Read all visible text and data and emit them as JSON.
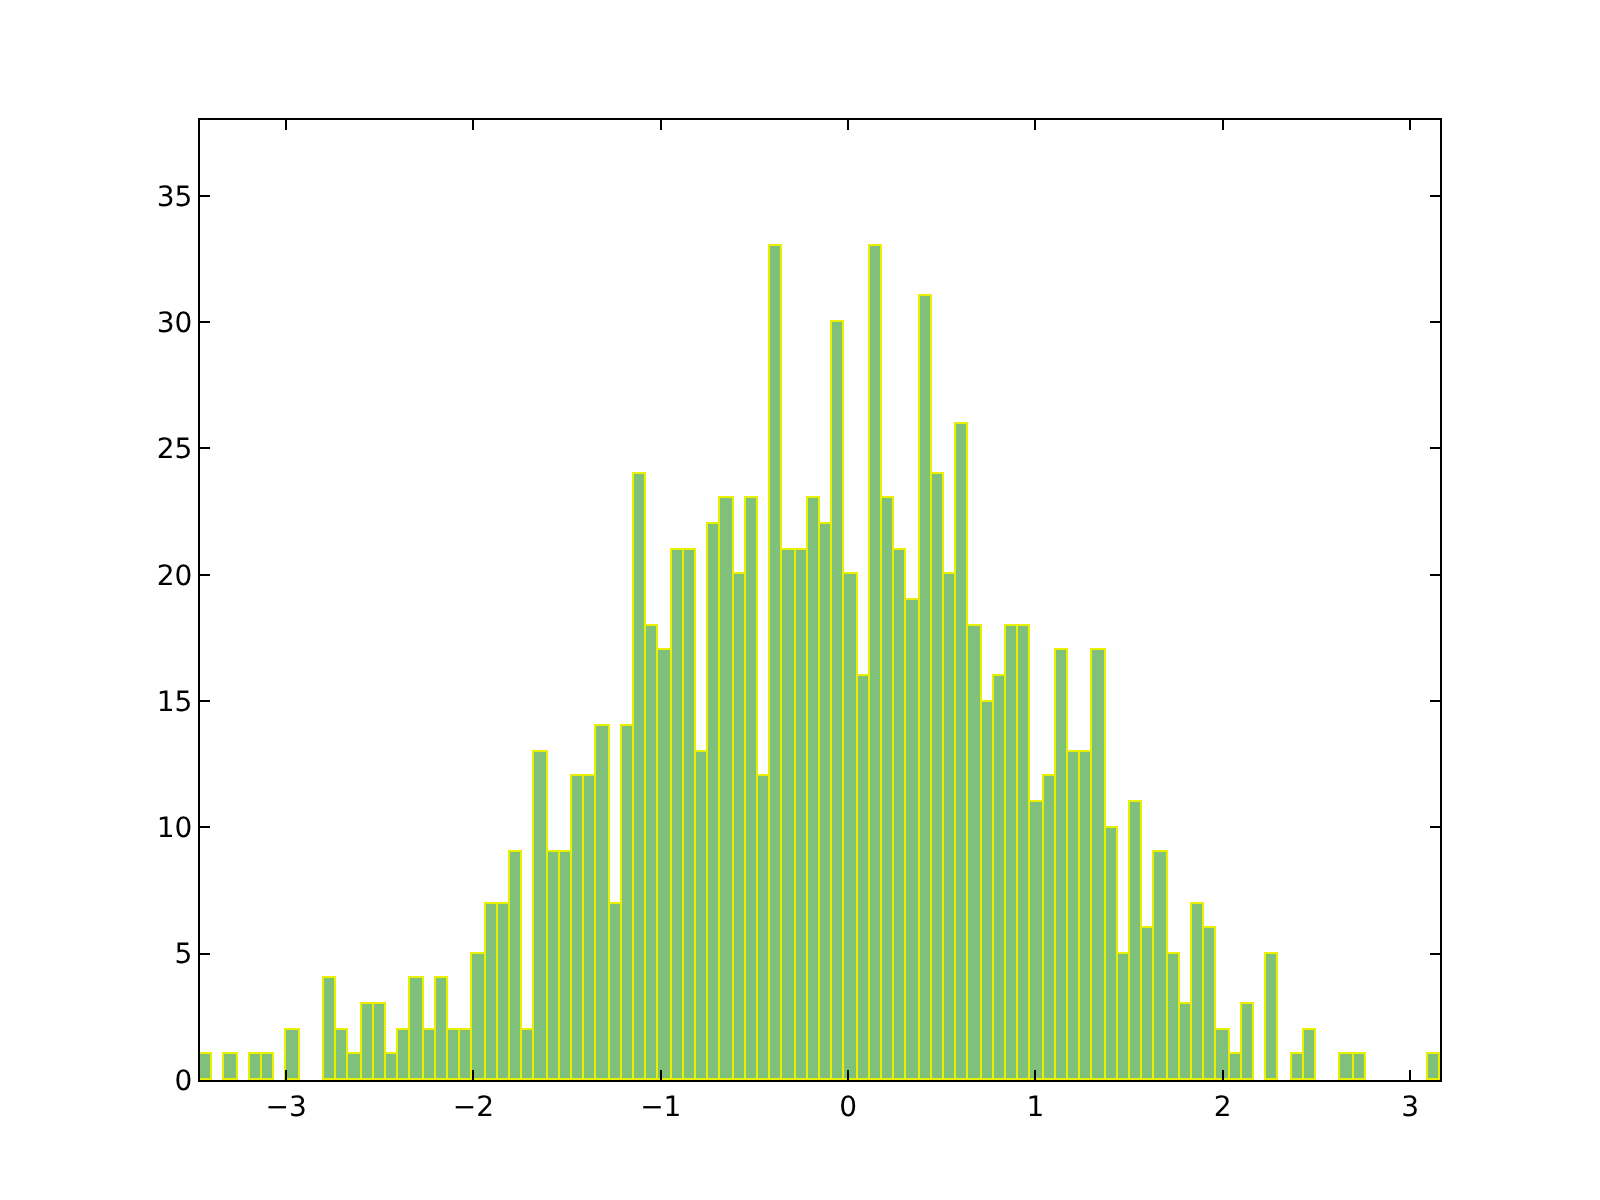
{
  "chart_data": {
    "type": "histogram",
    "color": "#7fc07a",
    "bins": [
      -3.46,
      -3.3938,
      -3.3276,
      -3.2614,
      -3.1952,
      -3.129,
      -3.0628,
      -2.9966,
      -2.9304,
      -2.8642,
      -2.798,
      -2.7318,
      -2.6656,
      -2.5994,
      -2.5332,
      -2.467,
      -2.4008,
      -2.3346,
      -2.2684,
      -2.2022,
      -2.136,
      -2.0698,
      -2.0036,
      -1.9374,
      -1.8712,
      -1.805,
      -1.7388,
      -1.6726,
      -1.6064,
      -1.5402,
      -1.474,
      -1.4078,
      -1.3416,
      -1.2754,
      -1.2092,
      -1.143,
      -1.0768,
      -1.0106,
      -0.9444,
      -0.8782,
      -0.812,
      -0.7458,
      -0.6796,
      -0.6134,
      -0.5472,
      -0.481,
      -0.4148,
      -0.3486,
      -0.2824,
      -0.2162,
      -0.15,
      -0.0838,
      -0.0176,
      0.0486,
      0.1148,
      0.181,
      0.2472,
      0.3134,
      0.3796,
      0.4458,
      0.512,
      0.5782,
      0.6444,
      0.7106,
      0.7768,
      0.843,
      0.9092,
      0.9754,
      1.0416,
      1.1078,
      1.174,
      1.2402,
      1.3064,
      1.3726,
      1.4388,
      1.505,
      1.5712,
      1.6374,
      1.7036,
      1.7698,
      1.836,
      1.9022,
      1.9684,
      2.0346,
      2.1008,
      2.167,
      2.2332,
      2.2994,
      2.3656,
      2.4318,
      2.498,
      2.5642,
      2.6304,
      2.6966,
      2.7628,
      2.829,
      2.8952,
      2.9614,
      3.0276,
      3.0938,
      3.16
    ],
    "values": [
      1,
      0,
      1,
      0,
      1,
      1,
      0,
      2,
      0,
      0,
      4,
      2,
      1,
      3,
      3,
      1,
      2,
      4,
      2,
      4,
      2,
      2,
      5,
      7,
      7,
      9,
      2,
      13,
      9,
      9,
      12,
      12,
      14,
      7,
      14,
      24,
      18,
      17,
      21,
      21,
      13,
      22,
      23,
      20,
      23,
      12,
      33,
      21,
      21,
      23,
      22,
      30,
      20,
      16,
      33,
      23,
      21,
      19,
      31,
      24,
      20,
      26,
      18,
      15,
      16,
      18,
      18,
      11,
      12,
      17,
      13,
      13,
      17,
      10,
      5,
      11,
      6,
      9,
      5,
      3,
      7,
      6,
      2,
      1,
      3,
      0,
      5,
      0,
      1,
      2,
      0,
      0,
      1,
      1,
      0,
      0,
      0,
      0,
      0,
      1
    ],
    "xlim": [
      -3.46,
      3.16
    ],
    "xticks": [
      -3,
      -2,
      -1,
      0,
      1,
      2,
      3
    ],
    "ylim": [
      0,
      38
    ],
    "yticks": [
      0,
      5,
      10,
      15,
      20,
      25,
      30,
      35
    ]
  }
}
